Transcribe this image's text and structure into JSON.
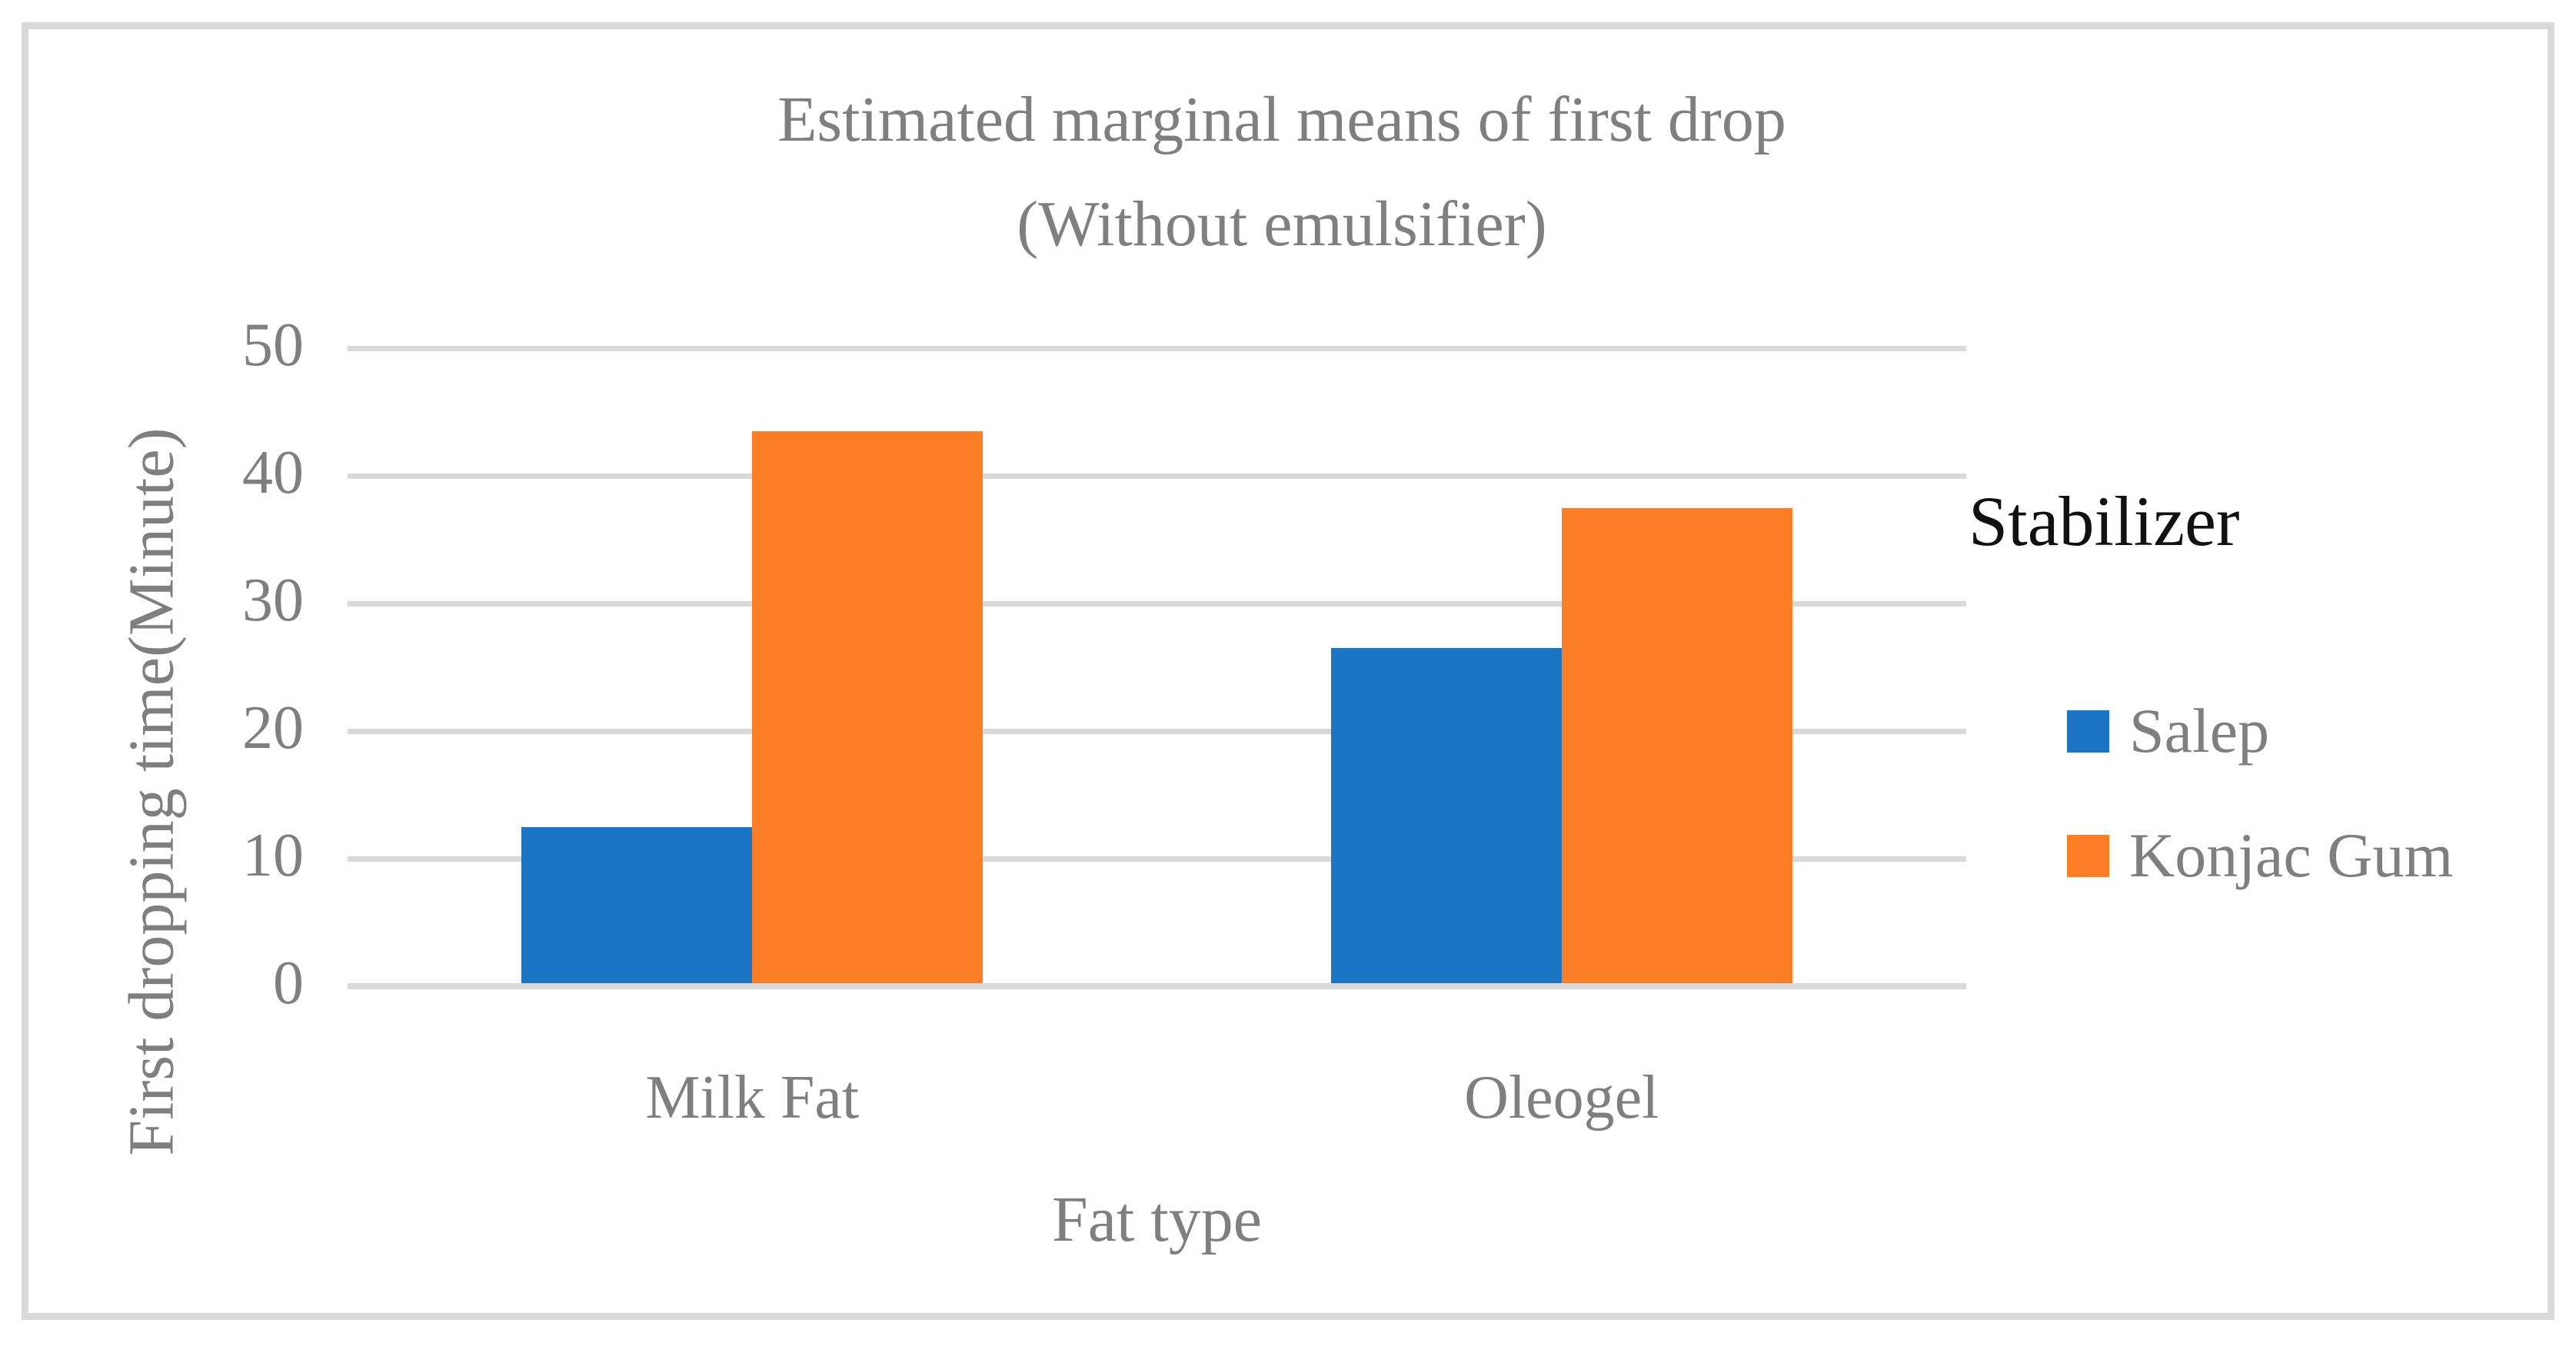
{
  "title": {
    "line1": "Estimated marginal means of first drop",
    "line2": "(Without emulsifier)"
  },
  "legend": {
    "title": "Stabilizer",
    "items": [
      {
        "label": "Salep",
        "color": "#1B74C4"
      },
      {
        "label": "Konjac Gum",
        "color": "#FB7E27"
      }
    ]
  },
  "chart_data": {
    "type": "bar",
    "categories": [
      "Milk Fat",
      "Oleogel"
    ],
    "series": [
      {
        "name": "Salep",
        "color": "#1B74C4",
        "values": [
          12.5,
          26.5
        ]
      },
      {
        "name": "Konjac Gum",
        "color": "#FB7E27",
        "values": [
          43.5,
          37.5
        ]
      }
    ],
    "title": "Estimated marginal means of first drop (Without emulsifier)",
    "xlabel": "Fat type",
    "ylabel": "First dropping time(Minute)",
    "ylim": [
      0,
      50
    ],
    "yticks": [
      0,
      10,
      20,
      30,
      40,
      50
    ],
    "grid": "horizontal",
    "legend_position": "right"
  },
  "colors": {
    "grid": "#D9D9D9",
    "axis_text": "#7F7F7F",
    "title_text": "#7F7F7F",
    "legend_title_text": "#111111",
    "frame": "#D9D9D9",
    "background": "#FFFFFF"
  }
}
